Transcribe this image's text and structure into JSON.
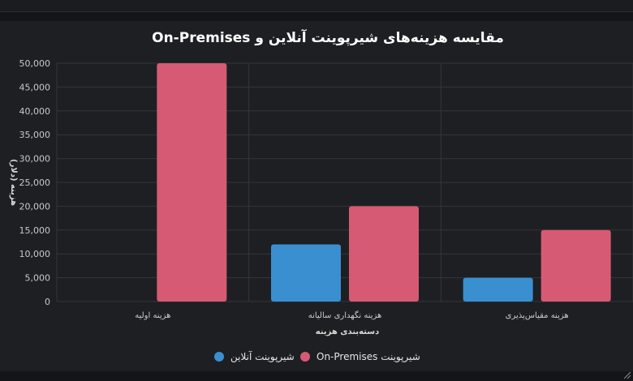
{
  "chart_data": {
    "type": "bar",
    "title": "On-Premises مقایسه هزینه‌های شیرپوینت آنلاین و",
    "xlabel": "دسته‌بندی هزینه",
    "ylabel": "هزینه (دلار)",
    "categories": [
      "هزینه اولیه",
      "هزینه نگهداری سالیانه",
      "هزینه مقیاس‌پذیری"
    ],
    "ylim": [
      0,
      50000
    ],
    "yticks": [
      0,
      5000,
      10000,
      15000,
      20000,
      25000,
      30000,
      35000,
      40000,
      45000,
      50000
    ],
    "ytick_labels": [
      "0",
      "5,000",
      "10,000",
      "15,000",
      "20,000",
      "25,000",
      "30,000",
      "35,000",
      "40,000",
      "45,000",
      "50,000"
    ],
    "series": [
      {
        "name": "شیرپوینت آنلاین",
        "color": "#3a8fd0",
        "values": [
          0,
          12000,
          5000
        ]
      },
      {
        "name": "On-Premises شیرپوینت",
        "color": "#d65a73",
        "values": [
          50000,
          20000,
          15000
        ]
      }
    ],
    "grid": true,
    "legend_position": "bottom"
  },
  "colors": {
    "background": "#1e1f22",
    "grid": "#34363b",
    "online": "#3a8fd0",
    "onprem": "#d65a73"
  }
}
